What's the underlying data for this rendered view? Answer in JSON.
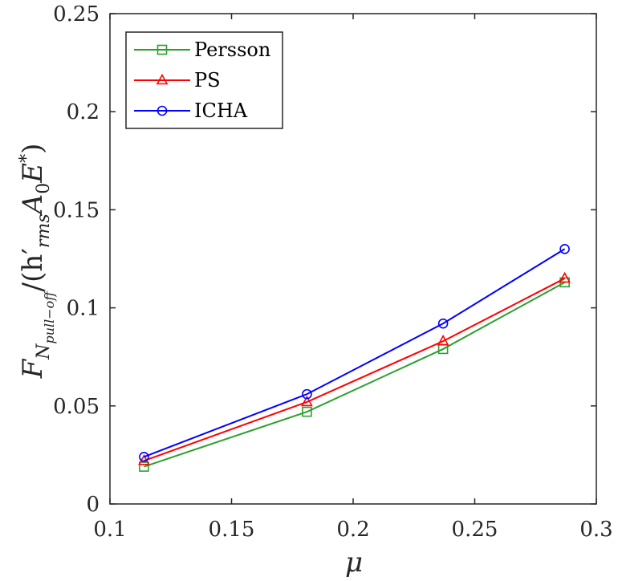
{
  "chart_data": {
    "type": "line",
    "x": [
      0.114,
      0.181,
      0.237,
      0.287
    ],
    "xlim": [
      0.1,
      0.3
    ],
    "ylim": [
      0,
      0.25
    ],
    "xticks": [
      0.1,
      0.15,
      0.2,
      0.25,
      0.3
    ],
    "yticks": [
      0,
      0.05,
      0.1,
      0.15,
      0.2,
      0.25
    ],
    "xtick_labels": [
      "0.1",
      "0.15",
      "0.2",
      "0.25",
      "0.3"
    ],
    "ytick_labels": [
      "0",
      "0.05",
      "0.1",
      "0.15",
      "0.2",
      "0.25"
    ],
    "xlabel": "μ",
    "ylabel": {
      "F": "F",
      "N": "N",
      "sub": "pull−off",
      "mid": "/(h",
      "prime": "′",
      "rms": "rms",
      "A": "A",
      "zero": "0",
      "E": "E",
      "star": "*",
      "close": ")"
    },
    "grid": false,
    "legend_position": "top-left",
    "series": [
      {
        "name": "Persson",
        "color": "#2ca02c",
        "marker": "square",
        "values": [
          0.019,
          0.047,
          0.079,
          0.113
        ]
      },
      {
        "name": "PS",
        "color": "#ff0000",
        "marker": "triangle",
        "values": [
          0.022,
          0.052,
          0.083,
          0.115
        ]
      },
      {
        "name": "ICHA",
        "color": "#0000ff",
        "marker": "circle",
        "values": [
          0.024,
          0.056,
          0.092,
          0.13
        ]
      }
    ]
  }
}
